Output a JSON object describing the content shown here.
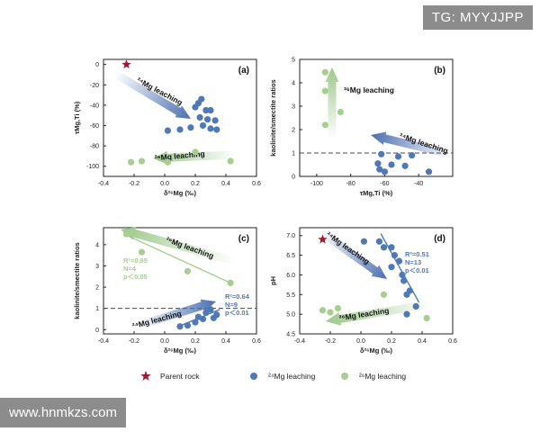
{
  "watermarks": {
    "top": "TG: MYYJJPP",
    "bottom": "www.hnmkzs.com"
  },
  "colors": {
    "parent": "#9b1b30",
    "leach24": "#4f78b6",
    "leach26": "#a6cf8f",
    "axis": "#222222",
    "arrow24": "#4a6fb0",
    "arrow26": "#9cc88a"
  },
  "legend": [
    {
      "marker": "star",
      "label": "Parent rock"
    },
    {
      "marker": "blue-circle",
      "label": "²⁴Mg leaching"
    },
    {
      "marker": "green-circle",
      "label": "²⁶Mg leaching"
    }
  ],
  "chart_data": [
    {
      "panel": "(a)",
      "type": "scatter",
      "xlabel": "δ²⁶Mg (‰)",
      "ylabel": "τMg,Ti (%)",
      "xlim": [
        -0.4,
        0.6
      ],
      "ylim": [
        -110,
        5
      ],
      "xticks": [
        "-0.4",
        "-0.2",
        "0.0",
        "0.2",
        "0.4",
        "0.6"
      ],
      "yticks": [
        "0",
        "-20",
        "-40",
        "-60",
        "-80",
        "-100"
      ],
      "xtick_values": [
        -0.4,
        -0.2,
        0.0,
        0.2,
        0.4,
        0.6
      ],
      "ytick_values": [
        0,
        -20,
        -40,
        -60,
        -80,
        -100
      ],
      "annotations": [
        "²⁴Mg leaching",
        "²⁶Mg leaching"
      ],
      "series": [
        {
          "name": "Parent rock",
          "marker": "star",
          "points": [
            [
              -0.25,
              0
            ]
          ]
        },
        {
          "name": "²⁴Mg leaching",
          "marker": "blue-circle",
          "points": [
            [
              0.02,
              -65
            ],
            [
              0.1,
              -64
            ],
            [
              0.17,
              -62
            ],
            [
              0.2,
              -42
            ],
            [
              0.22,
              -38
            ],
            [
              0.24,
              -34
            ],
            [
              0.23,
              -52
            ],
            [
              0.25,
              -60
            ],
            [
              0.27,
              -45
            ],
            [
              0.28,
              -54
            ],
            [
              0.3,
              -45
            ],
            [
              0.3,
              -63
            ],
            [
              0.33,
              -55
            ],
            [
              0.34,
              -64
            ]
          ]
        },
        {
          "name": "²⁶Mg leaching",
          "marker": "green-circle",
          "points": [
            [
              -0.22,
              -96
            ],
            [
              -0.15,
              -95
            ],
            [
              0.02,
              -96
            ],
            [
              0.2,
              -86
            ],
            [
              0.43,
              -95
            ]
          ]
        }
      ]
    },
    {
      "panel": "(b)",
      "type": "scatter",
      "xlabel": "τMg,Ti (%)",
      "ylabel": "kaolinite/smectite ratios",
      "xlim": [
        -110,
        -20
      ],
      "ylim": [
        0,
        5
      ],
      "xticks": [
        "-100",
        "-80",
        "-60",
        "-40"
      ],
      "yticks": [
        "0",
        "1",
        "2",
        "3",
        "4",
        "5"
      ],
      "xtick_values": [
        -100,
        -80,
        -60,
        -40
      ],
      "ytick_values": [
        0,
        1,
        2,
        3,
        4,
        5
      ],
      "hline": 1,
      "annotations": [
        "²⁶Mg leaching",
        "²⁴Mg leaching"
      ],
      "series": [
        {
          "name": "²⁴Mg leaching",
          "marker": "blue-circle",
          "points": [
            [
              -64,
              0.55
            ],
            [
              -63,
              0.3
            ],
            [
              -62,
              0.95
            ],
            [
              -60,
              0.2
            ],
            [
              -56,
              0.5
            ],
            [
              -52,
              0.85
            ],
            [
              -48,
              0.45
            ],
            [
              -44,
              0.9
            ],
            [
              -34,
              0.2
            ]
          ]
        },
        {
          "name": "²⁶Mg leaching",
          "marker": "green-circle",
          "points": [
            [
              -95,
              4.45
            ],
            [
              -95,
              3.65
            ],
            [
              -95,
              2.2
            ],
            [
              -86,
              2.75
            ]
          ]
        }
      ]
    },
    {
      "panel": "(c)",
      "type": "scatter",
      "xlabel": "δ²⁶Mg (‰)",
      "ylabel": "kaolinite/smectite ratios",
      "xlim": [
        -0.4,
        0.6
      ],
      "ylim": [
        -0.2,
        4.8
      ],
      "xticks": [
        "-0.4",
        "-0.2",
        "0.0",
        "0.2",
        "0.4",
        "0.6"
      ],
      "yticks": [
        "0",
        "1",
        "2",
        "3",
        "4"
      ],
      "xtick_values": [
        -0.4,
        -0.2,
        0.0,
        0.2,
        0.4,
        0.6
      ],
      "ytick_values": [
        0,
        1,
        2,
        3,
        4
      ],
      "hline": 1,
      "annotations": [
        "²⁶Mg leaching",
        "²⁴Mg leaching"
      ],
      "stats": [
        {
          "lines": [
            "R²=0.95",
            "N=4",
            "p＜0.05"
          ],
          "series": "²⁶Mg leaching"
        },
        {
          "lines": [
            "R²=0.64",
            "N=9",
            "p＜0.01"
          ],
          "series": "²⁴Mg leaching"
        }
      ],
      "fits": [
        {
          "series": "²⁶Mg leaching",
          "from": [
            -0.25,
            4.45
          ],
          "to": [
            0.43,
            2.2
          ]
        },
        {
          "series": "²⁴Mg leaching",
          "from": [
            0.08,
            0.12
          ],
          "to": [
            0.36,
            0.95
          ]
        }
      ],
      "series": [
        {
          "name": "²⁶Mg leaching",
          "marker": "green-circle",
          "points": [
            [
              -0.25,
              4.5
            ],
            [
              -0.15,
              3.65
            ],
            [
              0.15,
              2.75
            ],
            [
              0.43,
              2.2
            ]
          ]
        },
        {
          "name": "²⁴Mg leaching",
          "marker": "blue-circle",
          "points": [
            [
              0.1,
              0.15
            ],
            [
              0.15,
              0.2
            ],
            [
              0.2,
              0.35
            ],
            [
              0.22,
              0.6
            ],
            [
              0.25,
              0.5
            ],
            [
              0.27,
              0.8
            ],
            [
              0.3,
              0.95
            ],
            [
              0.32,
              0.55
            ],
            [
              0.34,
              0.7
            ]
          ]
        }
      ]
    },
    {
      "panel": "(d)",
      "type": "scatter",
      "xlabel": "δ²⁶Mg (‰)",
      "ylabel": "pH",
      "xlim": [
        -0.4,
        0.6
      ],
      "ylim": [
        4.5,
        7.2
      ],
      "xticks": [
        "-0.4",
        "-0.2",
        "0.0",
        "0.2",
        "0.4",
        "0.6"
      ],
      "yticks": [
        "4.5",
        "5.0",
        "5.5",
        "6.0",
        "6.5",
        "7.0"
      ],
      "xtick_values": [
        -0.4,
        -0.2,
        0.0,
        0.2,
        0.4,
        0.6
      ],
      "ytick_values": [
        4.5,
        5.0,
        5.5,
        6.0,
        6.5,
        7.0
      ],
      "annotations": [
        "²⁴Mg leaching",
        "²⁶Mg leaching"
      ],
      "stats": [
        {
          "lines": [
            "R²=0.51",
            "N=13",
            "p＜0.01"
          ],
          "series": "²⁴Mg leaching"
        }
      ],
      "fits": [
        {
          "series": "²⁴Mg leaching",
          "from": [
            0.13,
            7.05
          ],
          "to": [
            0.38,
            5.3
          ]
        }
      ],
      "series": [
        {
          "name": "Parent rock",
          "marker": "star",
          "points": [
            [
              -0.25,
              6.9
            ]
          ]
        },
        {
          "name": "²⁴Mg leaching",
          "marker": "blue-circle",
          "points": [
            [
              0.02,
              6.85
            ],
            [
              0.12,
              6.85
            ],
            [
              0.15,
              6.7
            ],
            [
              0.2,
              6.7
            ],
            [
              0.22,
              6.5
            ],
            [
              0.2,
              6.2
            ],
            [
              0.25,
              6.35
            ],
            [
              0.27,
              6.0
            ],
            [
              0.28,
              5.85
            ],
            [
              0.3,
              5.5
            ],
            [
              0.32,
              5.6
            ],
            [
              0.36,
              5.2
            ],
            [
              0.3,
              5.0
            ]
          ]
        },
        {
          "name": "²⁶Mg leaching",
          "marker": "green-circle",
          "points": [
            [
              -0.25,
              5.1
            ],
            [
              -0.2,
              5.05
            ],
            [
              -0.15,
              5.15
            ],
            [
              0.15,
              5.5
            ],
            [
              0.43,
              4.9
            ]
          ]
        }
      ]
    }
  ]
}
